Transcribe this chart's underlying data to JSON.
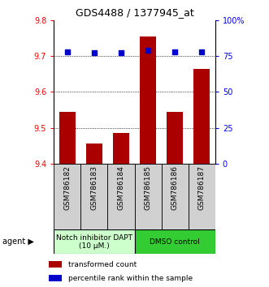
{
  "title": "GDS4488 / 1377945_at",
  "samples": [
    "GSM786182",
    "GSM786183",
    "GSM786184",
    "GSM786185",
    "GSM786186",
    "GSM786187"
  ],
  "bar_values": [
    9.545,
    9.455,
    9.485,
    9.755,
    9.545,
    9.665
  ],
  "percentile_values": [
    78,
    77,
    77,
    79,
    78,
    78
  ],
  "ylim_left": [
    9.4,
    9.8
  ],
  "ylim_right": [
    0,
    100
  ],
  "yticks_left": [
    9.4,
    9.5,
    9.6,
    9.7,
    9.8
  ],
  "yticks_right": [
    0,
    25,
    50,
    75,
    100
  ],
  "ytick_labels_right": [
    "0",
    "25",
    "50",
    "75",
    "100%"
  ],
  "bar_color": "#aa0000",
  "dot_color": "#0000cc",
  "gridline_y": [
    9.5,
    9.6,
    9.7
  ],
  "group1_label": "Notch inhibitor DAPT\n(10 μM.)",
  "group2_label": "DMSO control",
  "group1_color": "#ccffcc",
  "group2_color": "#33cc33",
  "agent_label": "agent",
  "legend_bar_label": "transformed count",
  "legend_dot_label": "percentile rank within the sample",
  "bar_width": 0.6,
  "x_positions": [
    0,
    1,
    2,
    3,
    4,
    5
  ],
  "tick_bg_color": "#d0d0d0",
  "border_color": "#000000"
}
